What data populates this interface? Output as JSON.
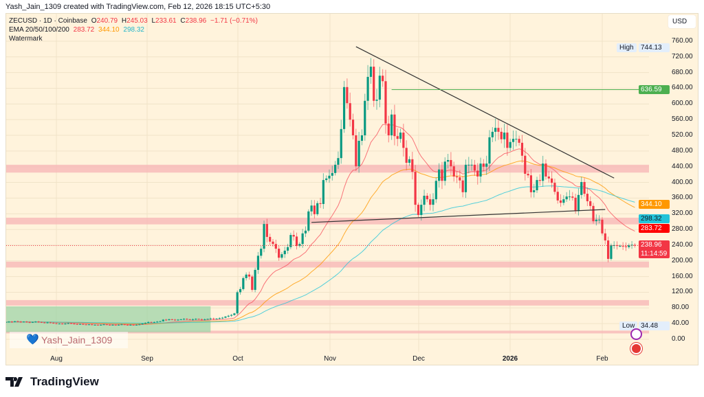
{
  "header": {
    "credit": "Yash_Jain_1309 created with TradingView.com, Feb 12, 2026 18:15 UTC+5:30"
  },
  "legend": {
    "symbol": "ZECUSD · 1D · Coinbase",
    "o_label": "O",
    "o": "240.79",
    "h_label": "H",
    "h": "245.03",
    "l_label": "L",
    "l": "233.61",
    "c_label": "C",
    "c": "238.96",
    "change": "−1.71 (−0.71%)",
    "ema_label": "EMA 20/50/100/200",
    "ema20": "283.72",
    "ema50": "344.10",
    "ema100": "298.32",
    "watermark_label": "Watermark"
  },
  "axis": {
    "currency": "USD",
    "high_label": "High",
    "high": "744.13",
    "low_label": "Low",
    "low": "34.48",
    "last_price": "238.96",
    "countdown": "11:14:59",
    "hline_price": "636.59"
  },
  "watermark": {
    "text": "Yash_Jain_1309",
    "icon": "blue-heart-icon"
  },
  "brand": {
    "name": "TradingView",
    "icon": "tradingview-logo-icon"
  },
  "icons": [
    "emoji-icon",
    "flag-icon"
  ],
  "colors": {
    "up": "#089981",
    "down": "#f23645",
    "ema20": "#f7525f",
    "ema50": "#ff9800",
    "ema100": "#26c6da",
    "zone": "#f8b8b8",
    "box": "#9fd4a8",
    "hline": "#4caf50",
    "trend": "#333333"
  },
  "chart_data": {
    "type": "candlestick",
    "symbol": "ZECUSD",
    "interval": "1D",
    "x_ticks": [
      "Aug",
      "Sep",
      "Oct",
      "Nov",
      "Dec",
      "2026",
      "Feb"
    ],
    "y_ticks": [
      "760.00",
      "720.00",
      "680.00",
      "640.00",
      "600.00",
      "560.00",
      "520.00",
      "480.00",
      "440.00",
      "400.00",
      "360.00",
      "320.00",
      "280.00",
      "240.00",
      "200.00",
      "160.00",
      "120.00",
      "80.00",
      "40.00",
      "0.00"
    ],
    "ylim": [
      0,
      760
    ],
    "last_date": "2026-02-12",
    "last_ohlc": [
      240.79,
      245.03,
      233.61,
      238.96
    ],
    "closes": [
      44,
      45,
      44,
      46,
      45,
      44,
      45,
      44,
      43,
      44,
      45,
      44,
      43,
      42,
      43,
      42,
      41,
      40,
      40,
      39,
      40,
      41,
      40,
      39,
      38,
      39,
      38,
      37,
      38,
      37,
      37,
      36,
      37,
      38,
      37,
      36,
      37,
      36,
      37,
      38,
      37,
      36,
      37,
      36,
      37,
      38,
      40,
      42,
      44,
      43,
      44,
      45,
      46,
      50,
      49,
      51,
      50,
      49,
      50,
      51,
      52,
      51,
      50,
      51,
      52,
      51,
      50,
      51,
      52,
      53,
      52,
      53,
      54,
      55,
      58,
      60,
      62,
      66,
      120,
      128,
      156,
      165,
      160,
      126,
      177,
      213,
      231,
      294,
      261,
      249,
      243,
      231,
      208,
      217,
      226,
      235,
      266,
      262,
      238,
      243,
      270,
      277,
      326,
      341,
      319,
      347,
      345,
      406,
      410,
      417,
      424,
      445,
      462,
      536,
      643,
      602,
      560,
      520,
      441,
      506,
      520,
      608,
      669,
      695,
      608,
      611,
      672,
      658,
      550,
      520,
      573,
      518,
      511,
      527,
      488,
      450,
      459,
      427,
      343,
      317,
      343,
      366,
      357,
      343,
      357,
      404,
      433,
      404,
      453,
      457,
      441,
      415,
      413,
      405,
      375,
      445,
      445,
      445,
      430,
      415,
      448,
      440,
      448,
      515,
      529,
      539,
      529,
      510,
      527,
      488,
      503,
      511,
      511,
      501,
      468,
      422,
      418,
      375,
      380,
      406,
      404,
      448,
      415,
      410,
      399,
      376,
      354,
      348,
      357,
      364,
      364,
      361,
      327,
      368,
      401,
      371,
      352,
      340,
      301,
      305,
      305,
      270,
      252,
      205,
      240,
      240,
      238,
      238,
      237,
      235,
      240,
      241,
      238.96
    ],
    "indicators": [
      {
        "name": "EMA 20",
        "period": 20
      },
      {
        "name": "EMA 50",
        "period": 50
      },
      {
        "name": "EMA 100",
        "period": 100
      }
    ],
    "zones": [
      [
        425,
        445
      ],
      [
        293,
        310
      ],
      [
        183,
        198
      ],
      [
        86,
        100
      ],
      [
        15,
        22
      ]
    ],
    "range_box": {
      "from": "2025-07-14",
      "to": "2025-09-22",
      "low": 18,
      "high": 84
    },
    "trendlines": [
      {
        "from": [
          "2025-11-10",
          746
        ],
        "to": [
          "2026-02-05",
          411
        ]
      },
      {
        "from": [
          "2025-10-26",
          298
        ],
        "to": [
          "2026-02-02",
          331
        ]
      }
    ],
    "horizontal_ray": {
      "from": "2025-11-22",
      "price": 636.59
    },
    "grid": true
  }
}
